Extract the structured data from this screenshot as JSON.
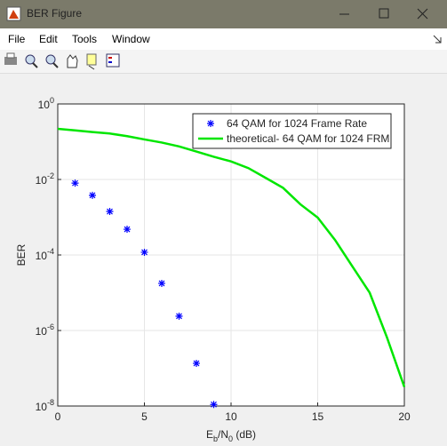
{
  "window": {
    "title": "BER Figure",
    "menu": [
      "File",
      "Edit",
      "Tools",
      "Window"
    ]
  },
  "chart_data": {
    "type": "scatter-line",
    "xlabel": "E_b/N_0 (dB)",
    "ylabel": "BER",
    "xlim": [
      0,
      20
    ],
    "xticks": [
      0,
      5,
      10,
      15,
      20
    ],
    "ylim": [
      1e-08,
      1
    ],
    "log_y": true,
    "yticks": [
      {
        "value": 1,
        "label": "10^0"
      },
      {
        "value": 0.01,
        "label": "10^-2"
      },
      {
        "value": 0.0001,
        "label": "10^-4"
      },
      {
        "value": 1e-06,
        "label": "10^-6"
      },
      {
        "value": 1e-08,
        "label": "10^-8"
      }
    ],
    "grid": true,
    "legend": "upper right",
    "series": [
      {
        "name": "64 QAM for 1024 Frame Rate",
        "kind": "marker",
        "color": "#0000ff",
        "x": [
          1,
          2,
          3,
          4,
          5,
          6,
          7,
          8,
          9
        ],
        "values": [
          0.008,
          0.0038,
          0.00142,
          0.00048,
          0.000118,
          1.77e-05,
          2.4e-06,
          1.35e-07,
          1.1e-08
        ]
      },
      {
        "name": "theoretical- 64 QAM for 1024 FRM",
        "kind": "line",
        "color": "#00e600",
        "x": [
          0,
          1,
          2,
          3,
          4,
          5,
          6,
          7,
          8,
          9,
          10,
          11,
          12,
          13,
          14,
          15,
          16,
          17,
          18,
          19,
          20
        ],
        "values": [
          0.22,
          0.2,
          0.18,
          0.165,
          0.14,
          0.115,
          0.095,
          0.075,
          0.055,
          0.04,
          0.03,
          0.02,
          0.011,
          0.006,
          0.0022,
          0.00098,
          0.00025,
          5e-05,
          1e-05,
          6.5e-07,
          3.2e-08
        ]
      }
    ]
  }
}
